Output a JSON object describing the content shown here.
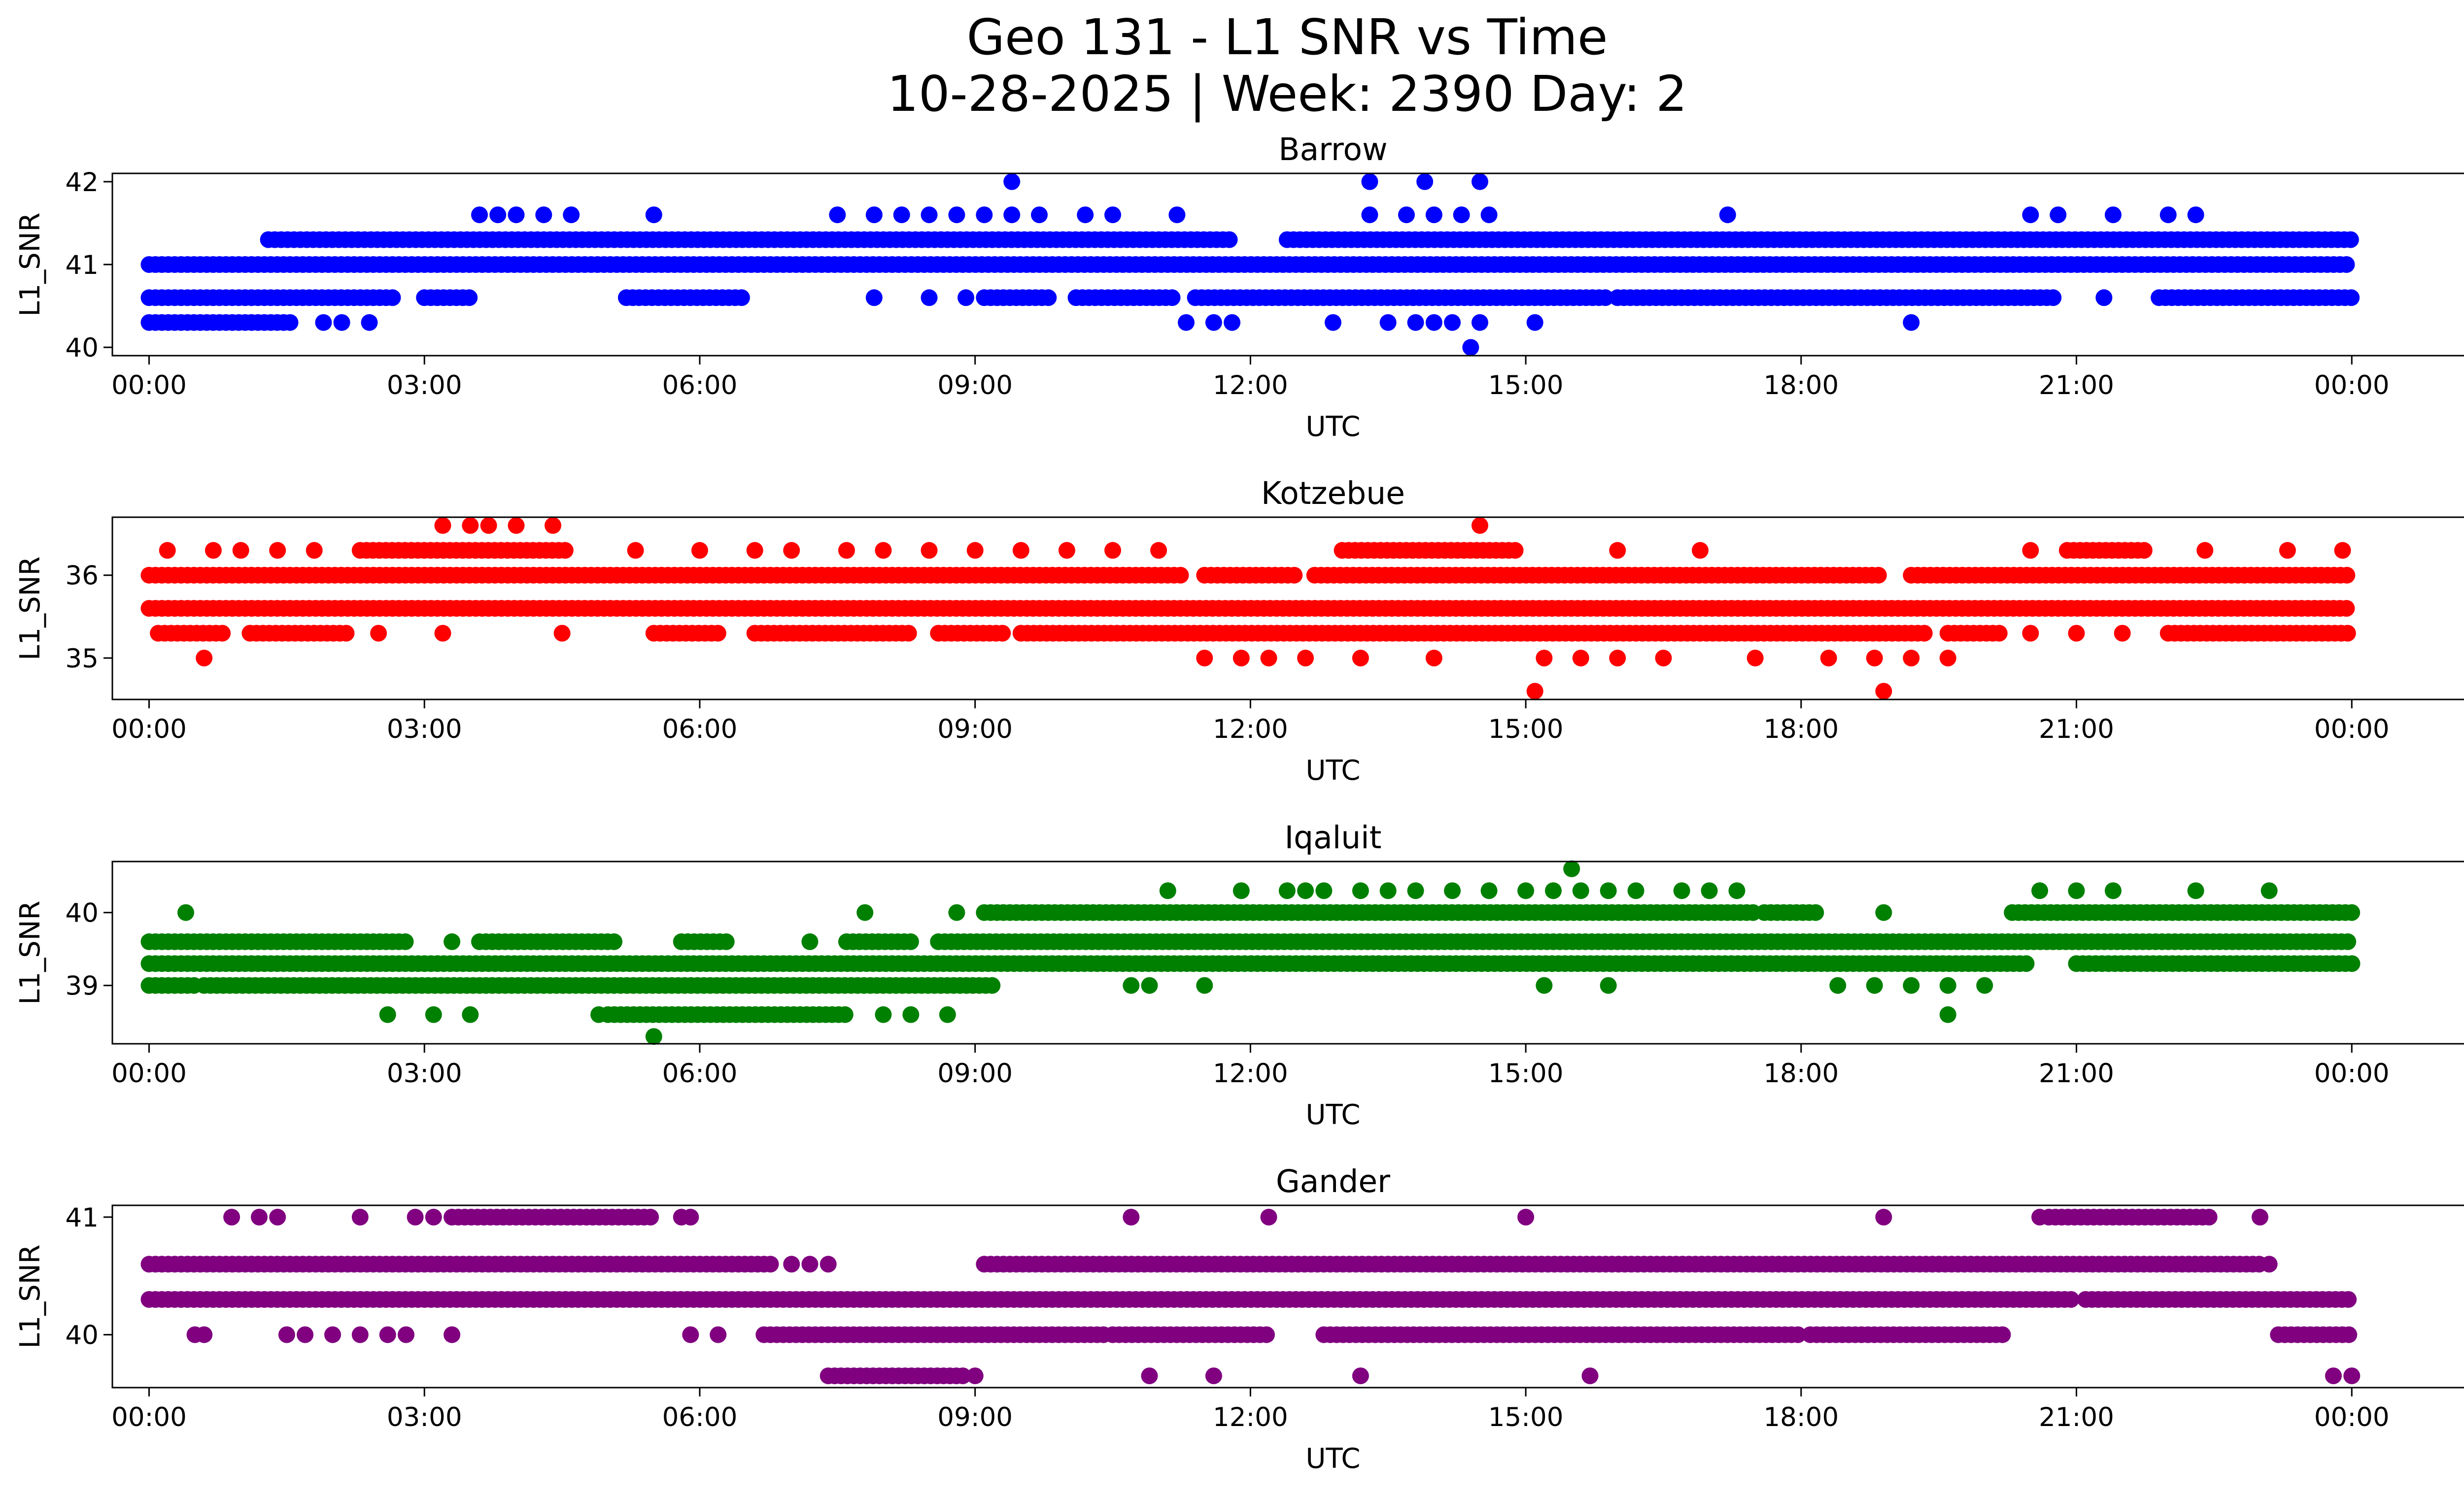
{
  "figure": {
    "title_line1": "Geo 131 - L1 SNR vs Time",
    "title_line2": "10-28-2025 | Week: 2390 Day: 2"
  },
  "chart_data": [
    {
      "type": "scatter",
      "title": "Barrow",
      "xlabel": "UTC",
      "ylabel": "L1_SNR",
      "color": "#0000ff",
      "xlim": [
        -0.4,
        26.2
      ],
      "ylim": [
        39.9,
        42.1
      ],
      "yticks": [
        40,
        41,
        42
      ],
      "xticks": [
        "00:00",
        "03:00",
        "06:00",
        "09:00",
        "12:00",
        "15:00",
        "18:00",
        "21:00",
        "00:00"
      ],
      "bands": [
        {
          "y": 40.6,
          "segments": [
            [
              0.0,
              2.7
            ],
            [
              3.0,
              3.5
            ],
            [
              5.2,
              6.5
            ],
            [
              9.1,
              9.8
            ],
            [
              10.1,
              11.2
            ],
            [
              11.4,
              15.9
            ],
            [
              16.0,
              20.8
            ],
            [
              21.9,
              24.0
            ]
          ]
        },
        {
          "y": 41.0,
          "segments": [
            [
              0.0,
              24.0
            ]
          ]
        },
        {
          "y": 41.3,
          "segments": [
            [
              1.3,
              11.8
            ],
            [
              12.4,
              24.0
            ]
          ]
        },
        {
          "y": 40.3,
          "segments": [
            [
              0.0,
              1.6
            ]
          ]
        }
      ],
      "points": [
        {
          "x": 9.4,
          "y": 42.0
        },
        {
          "x": 13.3,
          "y": 42.0
        },
        {
          "x": 13.9,
          "y": 42.0
        },
        {
          "x": 14.5,
          "y": 42.0
        },
        {
          "x": 14.4,
          "y": 40.0
        },
        {
          "x": 3.6,
          "y": 41.6
        },
        {
          "x": 3.8,
          "y": 41.6
        },
        {
          "x": 4.0,
          "y": 41.6
        },
        {
          "x": 4.3,
          "y": 41.6
        },
        {
          "x": 4.6,
          "y": 41.6
        },
        {
          "x": 5.5,
          "y": 41.6
        },
        {
          "x": 7.5,
          "y": 41.6
        },
        {
          "x": 7.9,
          "y": 41.6
        },
        {
          "x": 8.2,
          "y": 41.6
        },
        {
          "x": 8.5,
          "y": 41.6
        },
        {
          "x": 8.8,
          "y": 41.6
        },
        {
          "x": 9.1,
          "y": 41.6
        },
        {
          "x": 9.4,
          "y": 41.6
        },
        {
          "x": 9.7,
          "y": 41.6
        },
        {
          "x": 10.2,
          "y": 41.6
        },
        {
          "x": 10.5,
          "y": 41.6
        },
        {
          "x": 11.2,
          "y": 41.6
        },
        {
          "x": 13.3,
          "y": 41.6
        },
        {
          "x": 13.7,
          "y": 41.6
        },
        {
          "x": 14.0,
          "y": 41.6
        },
        {
          "x": 14.3,
          "y": 41.6
        },
        {
          "x": 14.6,
          "y": 41.6
        },
        {
          "x": 17.2,
          "y": 41.6
        },
        {
          "x": 20.5,
          "y": 41.6
        },
        {
          "x": 20.8,
          "y": 41.6
        },
        {
          "x": 21.4,
          "y": 41.6
        },
        {
          "x": 22.0,
          "y": 41.6
        },
        {
          "x": 22.3,
          "y": 41.6
        },
        {
          "x": 1.9,
          "y": 40.3
        },
        {
          "x": 2.1,
          "y": 40.3
        },
        {
          "x": 2.4,
          "y": 40.3
        },
        {
          "x": 11.3,
          "y": 40.3
        },
        {
          "x": 11.6,
          "y": 40.3
        },
        {
          "x": 11.8,
          "y": 40.3
        },
        {
          "x": 12.9,
          "y": 40.3
        },
        {
          "x": 13.5,
          "y": 40.3
        },
        {
          "x": 13.8,
          "y": 40.3
        },
        {
          "x": 14.0,
          "y": 40.3
        },
        {
          "x": 14.2,
          "y": 40.3
        },
        {
          "x": 14.5,
          "y": 40.3
        },
        {
          "x": 15.1,
          "y": 40.3
        },
        {
          "x": 19.2,
          "y": 40.3
        },
        {
          "x": 7.9,
          "y": 40.6
        },
        {
          "x": 8.5,
          "y": 40.6
        },
        {
          "x": 8.9,
          "y": 40.6
        },
        {
          "x": 21.3,
          "y": 40.6
        }
      ]
    },
    {
      "type": "scatter",
      "title": "Kotzebue",
      "xlabel": "UTC",
      "ylabel": "L1_SNR",
      "color": "#ff0000",
      "xlim": [
        -0.4,
        26.2
      ],
      "ylim": [
        34.5,
        36.7
      ],
      "yticks": [
        35,
        36
      ],
      "xticks": [
        "00:00",
        "03:00",
        "06:00",
        "09:00",
        "12:00",
        "15:00",
        "18:00",
        "21:00",
        "00:00"
      ],
      "bands": [
        {
          "y": 36.0,
          "segments": [
            [
              0.0,
              11.3
            ],
            [
              11.5,
              12.5
            ],
            [
              12.7,
              18.9
            ],
            [
              19.2,
              24.0
            ]
          ]
        },
        {
          "y": 35.6,
          "segments": [
            [
              0.0,
              24.0
            ]
          ]
        },
        {
          "y": 35.3,
          "segments": [
            [
              0.1,
              0.8
            ],
            [
              1.1,
              2.2
            ],
            [
              5.5,
              6.2
            ],
            [
              6.6,
              8.3
            ],
            [
              8.6,
              9.3
            ],
            [
              9.5,
              19.4
            ],
            [
              19.6,
              20.2
            ],
            [
              22.0,
              24.0
            ]
          ]
        },
        {
          "y": 36.3,
          "segments": [
            [
              2.3,
              4.6
            ],
            [
              13.0,
              14.9
            ],
            [
              20.9,
              21.8
            ]
          ]
        }
      ],
      "points": [
        {
          "x": 3.2,
          "y": 36.6
        },
        {
          "x": 3.5,
          "y": 36.6
        },
        {
          "x": 3.7,
          "y": 36.6
        },
        {
          "x": 4.0,
          "y": 36.6
        },
        {
          "x": 4.4,
          "y": 36.6
        },
        {
          "x": 14.5,
          "y": 36.6
        },
        {
          "x": 0.6,
          "y": 35.0
        },
        {
          "x": 11.5,
          "y": 35.0
        },
        {
          "x": 11.9,
          "y": 35.0
        },
        {
          "x": 12.2,
          "y": 35.0
        },
        {
          "x": 12.6,
          "y": 35.0
        },
        {
          "x": 13.2,
          "y": 35.0
        },
        {
          "x": 14.0,
          "y": 35.0
        },
        {
          "x": 15.2,
          "y": 35.0
        },
        {
          "x": 15.6,
          "y": 35.0
        },
        {
          "x": 16.0,
          "y": 35.0
        },
        {
          "x": 16.5,
          "y": 35.0
        },
        {
          "x": 17.5,
          "y": 35.0
        },
        {
          "x": 18.3,
          "y": 35.0
        },
        {
          "x": 18.8,
          "y": 35.0
        },
        {
          "x": 19.2,
          "y": 35.0
        },
        {
          "x": 19.6,
          "y": 35.0
        },
        {
          "x": 15.1,
          "y": 34.6
        },
        {
          "x": 18.9,
          "y": 34.6
        },
        {
          "x": 0.2,
          "y": 36.3
        },
        {
          "x": 0.7,
          "y": 36.3
        },
        {
          "x": 1.0,
          "y": 36.3
        },
        {
          "x": 1.4,
          "y": 36.3
        },
        {
          "x": 1.8,
          "y": 36.3
        },
        {
          "x": 5.3,
          "y": 36.3
        },
        {
          "x": 6.0,
          "y": 36.3
        },
        {
          "x": 6.6,
          "y": 36.3
        },
        {
          "x": 7.0,
          "y": 36.3
        },
        {
          "x": 7.6,
          "y": 36.3
        },
        {
          "x": 8.0,
          "y": 36.3
        },
        {
          "x": 8.5,
          "y": 36.3
        },
        {
          "x": 9.0,
          "y": 36.3
        },
        {
          "x": 9.5,
          "y": 36.3
        },
        {
          "x": 10.0,
          "y": 36.3
        },
        {
          "x": 10.5,
          "y": 36.3
        },
        {
          "x": 11.0,
          "y": 36.3
        },
        {
          "x": 16.0,
          "y": 36.3
        },
        {
          "x": 16.9,
          "y": 36.3
        },
        {
          "x": 20.5,
          "y": 36.3
        },
        {
          "x": 22.4,
          "y": 36.3
        },
        {
          "x": 23.3,
          "y": 36.3
        },
        {
          "x": 23.9,
          "y": 36.3
        },
        {
          "x": 2.5,
          "y": 35.3
        },
        {
          "x": 3.2,
          "y": 35.3
        },
        {
          "x": 4.5,
          "y": 35.3
        },
        {
          "x": 20.5,
          "y": 35.3
        },
        {
          "x": 21.0,
          "y": 35.3
        },
        {
          "x": 21.5,
          "y": 35.3
        }
      ]
    },
    {
      "type": "scatter",
      "title": "Iqaluit",
      "xlabel": "UTC",
      "ylabel": "L1_SNR",
      "color": "#008000",
      "xlim": [
        -0.4,
        26.2
      ],
      "ylim": [
        38.2,
        40.7
      ],
      "yticks": [
        39,
        40
      ],
      "xticks": [
        "00:00",
        "03:00",
        "06:00",
        "09:00",
        "12:00",
        "15:00",
        "18:00",
        "21:00",
        "00:00"
      ],
      "bands": [
        {
          "y": 39.6,
          "segments": [
            [
              0.0,
              2.8
            ],
            [
              3.6,
              5.1
            ],
            [
              5.8,
              6.3
            ],
            [
              7.6,
              8.3
            ],
            [
              8.6,
              24.0
            ]
          ]
        },
        {
          "y": 39.3,
          "segments": [
            [
              0.0,
              20.5
            ],
            [
              21.0,
              24.0
            ]
          ]
        },
        {
          "y": 39.0,
          "segments": [
            [
              0.0,
              0.5
            ],
            [
              0.6,
              9.2
            ]
          ]
        },
        {
          "y": 40.0,
          "segments": [
            [
              9.1,
              17.5
            ],
            [
              17.6,
              18.2
            ],
            [
              20.3,
              24.0
            ]
          ]
        },
        {
          "y": 38.6,
          "segments": [
            [
              5.0,
              7.6
            ]
          ]
        }
      ],
      "points": [
        {
          "x": 0.4,
          "y": 40.0
        },
        {
          "x": 7.8,
          "y": 40.0
        },
        {
          "x": 8.8,
          "y": 40.0
        },
        {
          "x": 18.9,
          "y": 40.0
        },
        {
          "x": 15.5,
          "y": 40.6
        },
        {
          "x": 5.5,
          "y": 38.3
        },
        {
          "x": 2.6,
          "y": 38.6
        },
        {
          "x": 3.1,
          "y": 38.6
        },
        {
          "x": 3.5,
          "y": 38.6
        },
        {
          "x": 4.9,
          "y": 38.6
        },
        {
          "x": 8.0,
          "y": 38.6
        },
        {
          "x": 8.3,
          "y": 38.6
        },
        {
          "x": 8.7,
          "y": 38.6
        },
        {
          "x": 19.6,
          "y": 38.6
        },
        {
          "x": 3.3,
          "y": 39.6
        },
        {
          "x": 7.2,
          "y": 39.6
        },
        {
          "x": 10.7,
          "y": 39.0
        },
        {
          "x": 10.9,
          "y": 39.0
        },
        {
          "x": 11.5,
          "y": 39.0
        },
        {
          "x": 15.2,
          "y": 39.0
        },
        {
          "x": 15.9,
          "y": 39.0
        },
        {
          "x": 18.4,
          "y": 39.0
        },
        {
          "x": 18.8,
          "y": 39.0
        },
        {
          "x": 19.2,
          "y": 39.0
        },
        {
          "x": 19.6,
          "y": 39.0
        },
        {
          "x": 20.0,
          "y": 39.0
        },
        {
          "x": 11.1,
          "y": 40.3
        },
        {
          "x": 11.9,
          "y": 40.3
        },
        {
          "x": 12.4,
          "y": 40.3
        },
        {
          "x": 12.6,
          "y": 40.3
        },
        {
          "x": 12.8,
          "y": 40.3
        },
        {
          "x": 13.2,
          "y": 40.3
        },
        {
          "x": 13.5,
          "y": 40.3
        },
        {
          "x": 13.8,
          "y": 40.3
        },
        {
          "x": 14.2,
          "y": 40.3
        },
        {
          "x": 14.6,
          "y": 40.3
        },
        {
          "x": 15.0,
          "y": 40.3
        },
        {
          "x": 15.3,
          "y": 40.3
        },
        {
          "x": 15.6,
          "y": 40.3
        },
        {
          "x": 15.9,
          "y": 40.3
        },
        {
          "x": 16.2,
          "y": 40.3
        },
        {
          "x": 16.7,
          "y": 40.3
        },
        {
          "x": 17.0,
          "y": 40.3
        },
        {
          "x": 17.3,
          "y": 40.3
        },
        {
          "x": 20.6,
          "y": 40.3
        },
        {
          "x": 21.0,
          "y": 40.3
        },
        {
          "x": 21.4,
          "y": 40.3
        },
        {
          "x": 22.3,
          "y": 40.3
        },
        {
          "x": 23.1,
          "y": 40.3
        }
      ]
    },
    {
      "type": "scatter",
      "title": "Gander",
      "xlabel": "UTC",
      "ylabel": "L1_SNR",
      "color": "#800080",
      "xlim": [
        -0.4,
        26.2
      ],
      "ylim": [
        39.55,
        41.1
      ],
      "yticks": [
        40,
        41
      ],
      "xticks": [
        "00:00",
        "03:00",
        "06:00",
        "09:00",
        "12:00",
        "15:00",
        "18:00",
        "21:00",
        "00:00"
      ],
      "bands": [
        {
          "y": 40.6,
          "segments": [
            [
              0.0,
              6.8
            ],
            [
              9.1,
              23.0
            ]
          ]
        },
        {
          "y": 40.3,
          "segments": [
            [
              0.0,
              21.0
            ],
            [
              21.1,
              24.0
            ]
          ]
        },
        {
          "y": 40.0,
          "segments": [
            [
              6.7,
              10.4
            ],
            [
              10.5,
              12.2
            ],
            [
              12.8,
              18.0
            ],
            [
              18.1,
              20.2
            ],
            [
              23.2,
              24.0
            ]
          ]
        },
        {
          "y": 41.0,
          "segments": [
            [
              3.3,
              5.5
            ],
            [
              20.7,
              22.5
            ]
          ]
        },
        {
          "y": 39.65,
          "segments": [
            [
              7.4,
              8.9
            ]
          ]
        }
      ],
      "points": [
        {
          "x": 0.9,
          "y": 41.0
        },
        {
          "x": 1.2,
          "y": 41.0
        },
        {
          "x": 1.4,
          "y": 41.0
        },
        {
          "x": 2.3,
          "y": 41.0
        },
        {
          "x": 2.9,
          "y": 41.0
        },
        {
          "x": 3.1,
          "y": 41.0
        },
        {
          "x": 5.8,
          "y": 41.0
        },
        {
          "x": 5.9,
          "y": 41.0
        },
        {
          "x": 10.7,
          "y": 41.0
        },
        {
          "x": 12.2,
          "y": 41.0
        },
        {
          "x": 15.0,
          "y": 41.0
        },
        {
          "x": 18.9,
          "y": 41.0
        },
        {
          "x": 20.6,
          "y": 41.0
        },
        {
          "x": 23.0,
          "y": 41.0
        },
        {
          "x": 7.0,
          "y": 40.6
        },
        {
          "x": 7.2,
          "y": 40.6
        },
        {
          "x": 7.4,
          "y": 40.6
        },
        {
          "x": 23.1,
          "y": 40.6
        },
        {
          "x": 0.5,
          "y": 40.0
        },
        {
          "x": 0.6,
          "y": 40.0
        },
        {
          "x": 1.5,
          "y": 40.0
        },
        {
          "x": 1.7,
          "y": 40.0
        },
        {
          "x": 2.0,
          "y": 40.0
        },
        {
          "x": 2.3,
          "y": 40.0
        },
        {
          "x": 2.6,
          "y": 40.0
        },
        {
          "x": 2.8,
          "y": 40.0
        },
        {
          "x": 3.3,
          "y": 40.0
        },
        {
          "x": 5.9,
          "y": 40.0
        },
        {
          "x": 6.2,
          "y": 40.0
        },
        {
          "x": 9.0,
          "y": 39.65
        },
        {
          "x": 10.9,
          "y": 39.65
        },
        {
          "x": 11.6,
          "y": 39.65
        },
        {
          "x": 13.2,
          "y": 39.65
        },
        {
          "x": 15.7,
          "y": 39.65
        },
        {
          "x": 23.8,
          "y": 39.65
        },
        {
          "x": 24.0,
          "y": 39.65
        }
      ]
    }
  ]
}
